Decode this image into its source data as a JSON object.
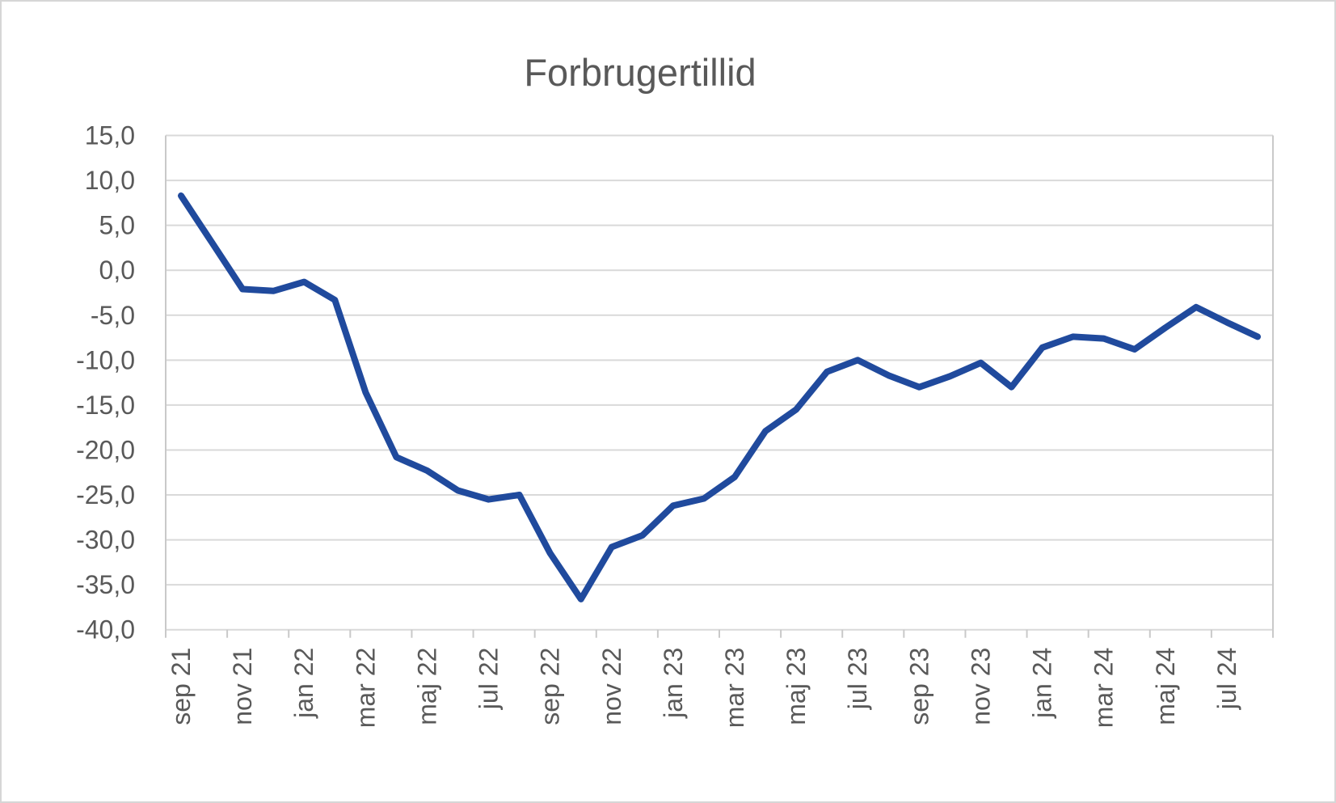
{
  "chart": {
    "title": "Forbrugertillid"
  },
  "chart_data": {
    "type": "line",
    "title": "Forbrugertillid",
    "categories": [
      "sep 21",
      "okt 21",
      "nov 21",
      "dec 21",
      "jan 22",
      "feb 22",
      "mar 22",
      "apr 22",
      "maj 22",
      "jun 22",
      "jul 22",
      "aug 22",
      "sep 22",
      "okt 22",
      "nov 22",
      "dec 22",
      "jan 23",
      "feb 23",
      "mar 23",
      "apr 23",
      "maj 23",
      "jun 23",
      "jul 23",
      "aug 23",
      "sep 23",
      "okt 23",
      "nov 23",
      "dec 23",
      "jan 24",
      "feb 24",
      "mar 24",
      "apr 24",
      "maj 24",
      "jun 24",
      "jul 24",
      "aug 24"
    ],
    "values": [
      8.3,
      3.1,
      -2.1,
      -2.3,
      -1.3,
      -3.3,
      -13.6,
      -20.8,
      -22.3,
      -24.5,
      -25.5,
      -25.0,
      -31.5,
      -36.6,
      -30.8,
      -29.5,
      -26.2,
      -25.4,
      -23.0,
      -17.9,
      -15.5,
      -11.3,
      -10.0,
      -11.7,
      -13.0,
      -11.8,
      -10.3,
      -13.0,
      -8.6,
      -7.4,
      -7.6,
      -8.8,
      -6.4,
      -4.1,
      -5.8,
      -7.4
    ],
    "label_every": 2,
    "x_tick_labels_shown": [
      "sep 21",
      "nov 21",
      "jan 22",
      "mar 22",
      "maj 22",
      "jul 22",
      "sep 22",
      "nov 22",
      "jan 23",
      "mar 23",
      "maj 23",
      "jul 23",
      "sep 23",
      "nov 23",
      "jan 24",
      "mar 24",
      "maj 24",
      "jul 24"
    ],
    "y_tick_labels": [
      "15,0",
      "10,0",
      "5,0",
      "0,0",
      "-5,0",
      "-10,0",
      "-15,0",
      "-20,0",
      "-25,0",
      "-30,0",
      "-35,0",
      "-40,0"
    ],
    "ylim": [
      -40,
      15
    ],
    "y_tick_step": 5,
    "xlabel": "",
    "ylabel": "",
    "grid": true,
    "legend": "none",
    "line_color": "#204a9d",
    "gridline_color": "#d9d9d9",
    "axis_line_color": "#c9c9c9",
    "tick_text_color": "#595959",
    "title_color": "#595959"
  }
}
